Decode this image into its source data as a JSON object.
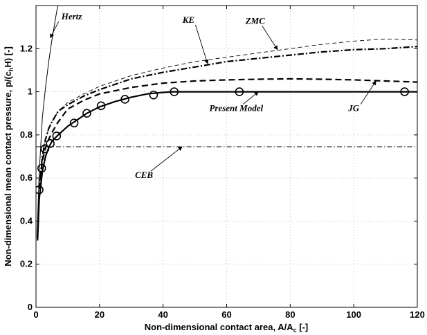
{
  "chart_data": {
    "type": "line",
    "title": "",
    "xlabel": "Non-dimensional contact area, A/A",
    "xlabel_sub": "c",
    "xlabel_tail": " [-]",
    "ylabel": "Non-dimensional mean contact pressure, p/(c",
    "ylabel_sub1": "h",
    "ylabel_mid": "H)",
    "ylabel_tail": " [-]",
    "xlim": [
      0,
      120
    ],
    "ylim": [
      0,
      1.4
    ],
    "grid": true,
    "xticks": [
      "0",
      "20",
      "40",
      "60",
      "80",
      "100",
      "120"
    ],
    "yticks": [
      "0",
      "0.2",
      "0.4",
      "0.6",
      "0.8",
      "1",
      "1.2"
    ],
    "series": [
      {
        "name": "Hertz",
        "style": "solid-thin",
        "x": [
          0.3,
          1,
          2,
          3,
          4,
          5,
          6.5,
          8.5
        ],
        "y": [
          0.32,
          0.62,
          0.88,
          1.02,
          1.14,
          1.24,
          1.37,
          1.5
        ]
      },
      {
        "name": "CEB",
        "style": "dashdot-thin",
        "x": [
          0,
          120
        ],
        "y": [
          0.745,
          0.745
        ]
      },
      {
        "name": "Present Model",
        "style": "solid-thick",
        "x": [
          0.5,
          1,
          2,
          3,
          4,
          5,
          7,
          10,
          13,
          16,
          20,
          25,
          30,
          35,
          40,
          43,
          50,
          60,
          80,
          100,
          120
        ],
        "y": [
          0.31,
          0.5,
          0.63,
          0.7,
          0.74,
          0.77,
          0.8,
          0.84,
          0.87,
          0.9,
          0.93,
          0.955,
          0.975,
          0.99,
          0.997,
          1.0,
          1.0,
          1.0,
          1.0,
          1.0,
          1.0
        ]
      },
      {
        "name": "Present Model markers",
        "style": "circles",
        "x": [
          1.0,
          1.8,
          2.8,
          4.5,
          6.5,
          12,
          16,
          20.5,
          28,
          37,
          43.5,
          64,
          116
        ],
        "y": [
          0.545,
          0.645,
          0.735,
          0.76,
          0.795,
          0.855,
          0.9,
          0.935,
          0.965,
          0.985,
          1.0,
          1.0,
          1.0
        ]
      },
      {
        "name": "JG",
        "style": "dashed-thick",
        "x": [
          1,
          2,
          3,
          4,
          5,
          7,
          10,
          15,
          20,
          30,
          40,
          50,
          60,
          70,
          80,
          90,
          100,
          110,
          120
        ],
        "y": [
          0.55,
          0.68,
          0.74,
          0.78,
          0.81,
          0.86,
          0.92,
          0.96,
          0.99,
          1.02,
          1.04,
          1.05,
          1.055,
          1.058,
          1.06,
          1.058,
          1.055,
          1.05,
          1.045
        ]
      },
      {
        "name": "KE",
        "style": "dashdot-thick",
        "x": [
          1,
          2,
          3,
          4,
          5,
          7,
          10,
          15,
          20,
          30,
          40,
          50,
          60,
          70,
          80,
          90,
          100,
          110,
          120
        ],
        "y": [
          0.55,
          0.7,
          0.78,
          0.83,
          0.86,
          0.91,
          0.94,
          0.98,
          1.01,
          1.06,
          1.09,
          1.115,
          1.14,
          1.155,
          1.17,
          1.185,
          1.195,
          1.2,
          1.21
        ]
      },
      {
        "name": "ZMC",
        "style": "dashed-thin",
        "x": [
          1,
          2,
          3,
          4,
          5,
          7,
          10,
          15,
          20,
          30,
          40,
          50,
          60,
          70,
          80,
          90,
          100,
          110,
          120
        ],
        "y": [
          0.55,
          0.7,
          0.78,
          0.83,
          0.86,
          0.91,
          0.95,
          0.99,
          1.025,
          1.075,
          1.11,
          1.14,
          1.16,
          1.18,
          1.2,
          1.22,
          1.235,
          1.245,
          1.24
        ]
      }
    ],
    "annotations": [
      {
        "label": "Hertz",
        "text_xy": [
          8,
          1.335
        ],
        "arrow_to": [
          4.5,
          1.25
        ]
      },
      {
        "label": "KE",
        "text_xy": [
          48,
          1.32
        ],
        "arrow_to": [
          54,
          1.13
        ]
      },
      {
        "label": "ZMC",
        "text_xy": [
          69,
          1.315
        ],
        "arrow_to": [
          76,
          1.195
        ]
      },
      {
        "label": "Present Model",
        "text_xy": [
          63,
          0.91
        ],
        "arrow_to": [
          70,
          1.0
        ]
      },
      {
        "label": "JG",
        "text_xy": [
          100,
          0.91
        ],
        "arrow_to": [
          107,
          1.05
        ]
      },
      {
        "label": "CEB",
        "text_xy": [
          34,
          0.6
        ],
        "arrow_to": [
          46,
          0.745
        ]
      }
    ]
  }
}
